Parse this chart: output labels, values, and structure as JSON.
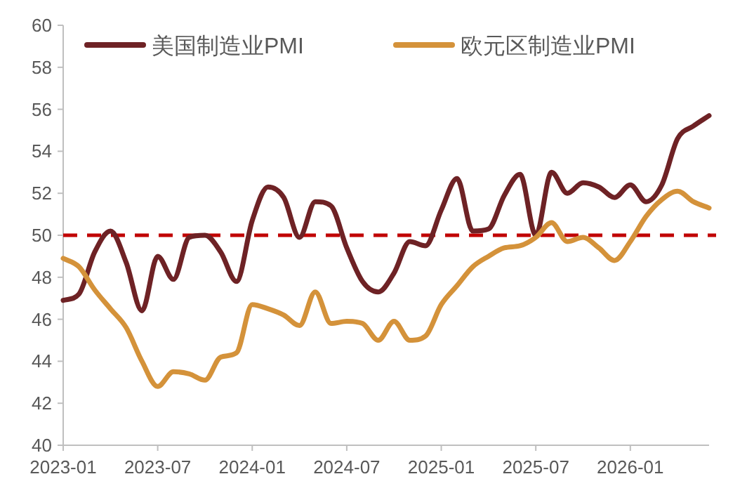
{
  "chart_data": {
    "type": "line",
    "x": [
      "2023-01",
      "2023-02",
      "2023-03",
      "2023-04",
      "2023-05",
      "2023-06",
      "2023-07",
      "2023-08",
      "2023-09",
      "2023-10",
      "2023-11",
      "2023-12",
      "2024-01",
      "2024-02",
      "2024-03",
      "2024-04",
      "2024-05",
      "2024-06",
      "2024-07",
      "2024-08",
      "2024-09",
      "2024-10",
      "2024-11",
      "2024-12",
      "2025-01",
      "2025-02",
      "2025-03",
      "2025-04",
      "2025-05",
      "2025-06",
      "2025-07",
      "2025-08",
      "2025-09",
      "2025-10",
      "2025-11",
      "2025-12",
      "2026-01",
      "2026-02",
      "2026-03",
      "2026-04",
      "2026-05",
      "2026-06"
    ],
    "series": [
      {
        "name": "美国制造业PMI",
        "color": "#6e2225",
        "values": [
          46.9,
          47.2,
          49.2,
          50.2,
          48.7,
          46.4,
          49.0,
          47.9,
          49.9,
          50.0,
          49.2,
          47.8,
          50.7,
          52.3,
          51.8,
          49.9,
          51.6,
          51.4,
          49.4,
          47.8,
          47.3,
          48.2,
          49.7,
          49.5,
          51.2,
          52.7,
          50.2,
          50.3,
          51.9,
          52.9,
          50.0,
          53.0,
          52.0,
          52.5,
          52.3,
          51.8,
          52.4,
          51.6,
          52.4,
          54.6,
          55.2,
          55.7
        ]
      },
      {
        "name": "欧元区制造业PMI",
        "color": "#d4923a",
        "values": [
          48.9,
          48.5,
          47.4,
          46.5,
          45.6,
          44.0,
          42.8,
          43.5,
          43.4,
          43.1,
          44.2,
          44.4,
          46.7,
          46.5,
          46.2,
          45.7,
          47.3,
          45.8,
          45.9,
          45.8,
          45.0,
          45.9,
          45.0,
          45.2,
          46.7,
          47.6,
          48.5,
          49.0,
          49.4,
          49.5,
          49.9,
          50.6,
          49.7,
          49.9,
          49.4,
          48.8,
          49.7,
          50.9,
          51.7,
          52.1,
          51.6,
          51.3
        ]
      }
    ],
    "xlim": [
      "2023-01",
      "2026-06"
    ],
    "xticks": [
      "2023-01",
      "2023-07",
      "2024-01",
      "2024-07",
      "2025-01",
      "2025-07",
      "2026-01"
    ],
    "ylim": [
      40,
      60
    ],
    "yticks": [
      40,
      42,
      44,
      46,
      48,
      50,
      52,
      54,
      56,
      58,
      60
    ],
    "ref_lines": [
      {
        "axis": "y",
        "value": 50,
        "color": "#c00000",
        "line_style": "dashed"
      }
    ],
    "legend": "top",
    "grid": false,
    "marker": "none",
    "line_style": "solid"
  }
}
